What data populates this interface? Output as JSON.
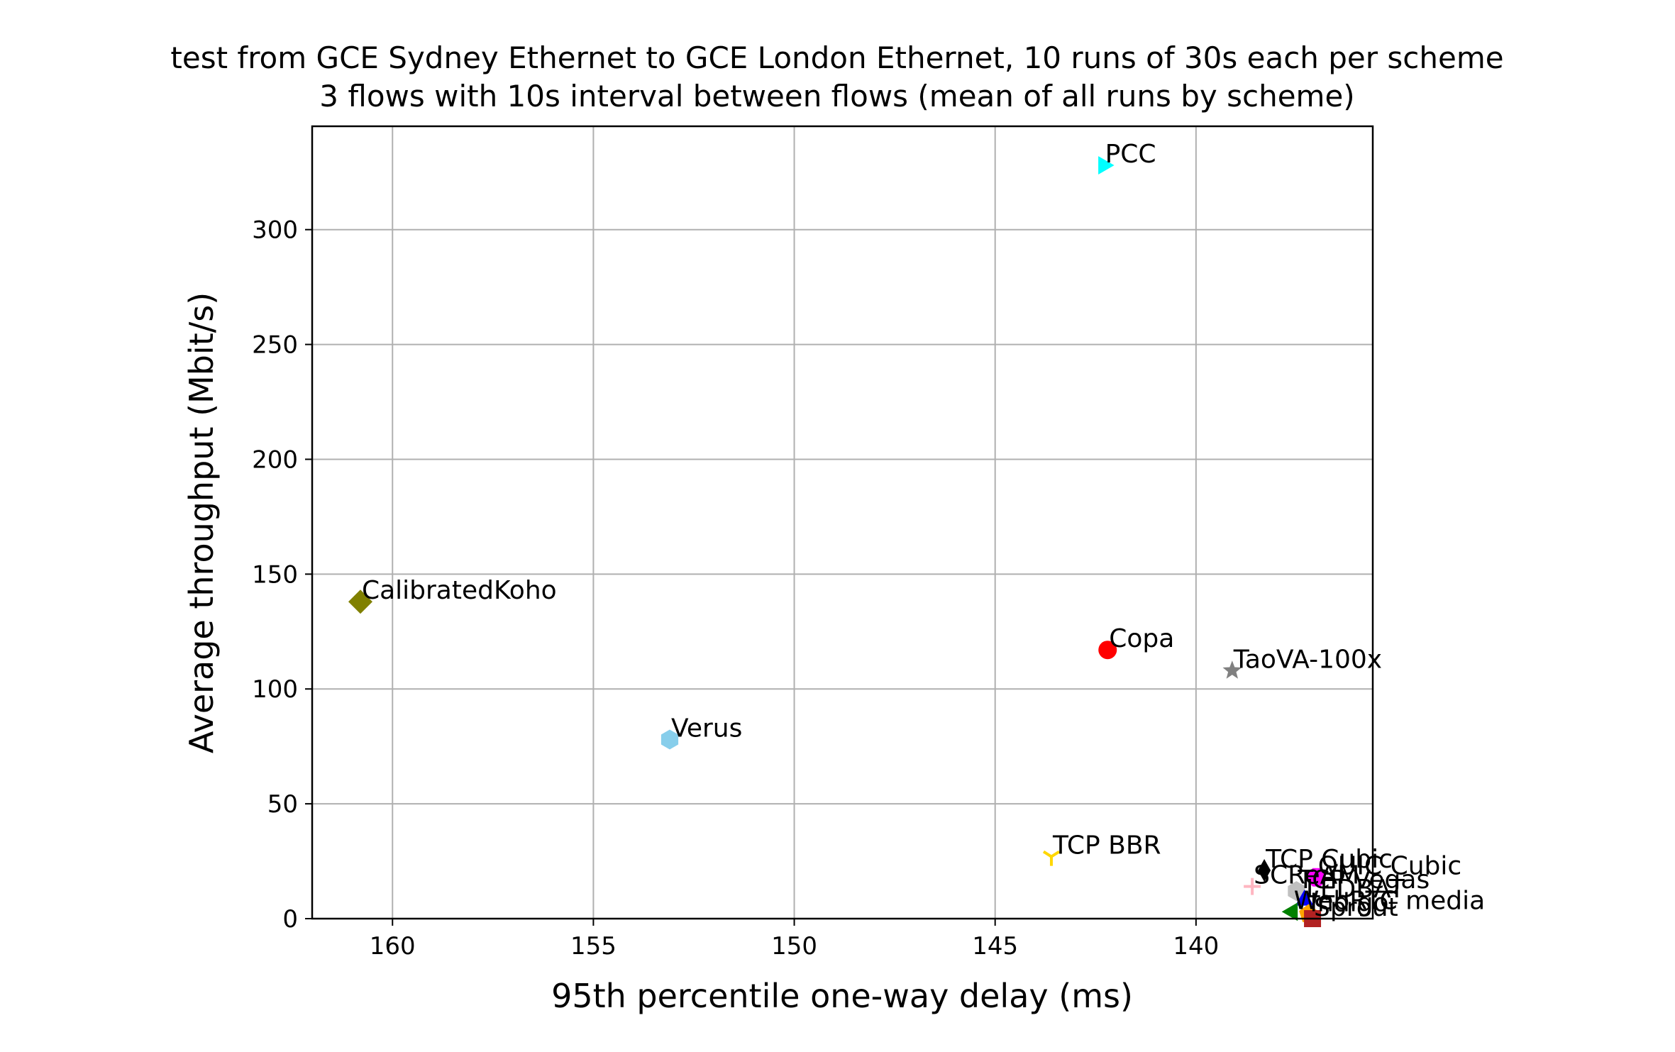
{
  "chart_data": {
    "type": "scatter",
    "title": "test from GCE Sydney Ethernet to GCE London Ethernet, 10 runs of 30s each per scheme",
    "subtitle": "3 flows with 10s interval between flows (mean of all runs by scheme)",
    "xlabel": "95th percentile one-way delay (ms)",
    "ylabel": "Average throughput (Mbit/s)",
    "x_reversed": true,
    "xlim": [
      162,
      135.6
    ],
    "ylim": [
      0,
      345
    ],
    "xticks": [
      160,
      155,
      150,
      145,
      140
    ],
    "yticks": [
      0,
      50,
      100,
      150,
      200,
      250,
      300
    ],
    "grid": true,
    "points": [
      {
        "name": "PCC",
        "x": 142.3,
        "y": 328,
        "marker": "triangle-right",
        "color": "#00ffff"
      },
      {
        "name": "CalibratedKoho",
        "x": 160.8,
        "y": 138,
        "marker": "diamond",
        "color": "#808000"
      },
      {
        "name": "Copa",
        "x": 142.2,
        "y": 117,
        "marker": "circle",
        "color": "#ff0000"
      },
      {
        "name": "TaoVA-100x",
        "x": 139.1,
        "y": 108,
        "marker": "star",
        "color": "#808080"
      },
      {
        "name": "Verus",
        "x": 153.1,
        "y": 78,
        "marker": "hexagon",
        "color": "#87ceeb"
      },
      {
        "name": "TCP BBR",
        "x": 143.6,
        "y": 27,
        "marker": "tri-down",
        "color": "#ffd700"
      },
      {
        "name": "TCP Cubic",
        "x": 138.3,
        "y": 21,
        "marker": "thin-diamond",
        "color": "#000000"
      },
      {
        "name": "QUIC Cubic",
        "x": 137.0,
        "y": 18,
        "marker": "octagon",
        "color": "#ff00ff"
      },
      {
        "name": "SCReAM",
        "x": 138.6,
        "y": 14,
        "marker": "plus",
        "color": "#ffb6c1"
      },
      {
        "name": "TCP Vegas",
        "x": 137.5,
        "y": 12,
        "marker": "hexagon",
        "color": "#c0c0c0"
      },
      {
        "name": "LEDBAT",
        "x": 137.3,
        "y": 8,
        "marker": "triangle-up",
        "color": "#0000ff"
      },
      {
        "name": "WebRTC media",
        "x": 137.6,
        "y": 3,
        "marker": "triangle-left",
        "color": "#008000"
      },
      {
        "name": "Indigo",
        "x": 137.2,
        "y": 2,
        "marker": "pentagon",
        "color": "#ffa500"
      },
      {
        "name": "Sprout",
        "x": 137.1,
        "y": 0,
        "marker": "square",
        "color": "#b22222"
      }
    ]
  }
}
